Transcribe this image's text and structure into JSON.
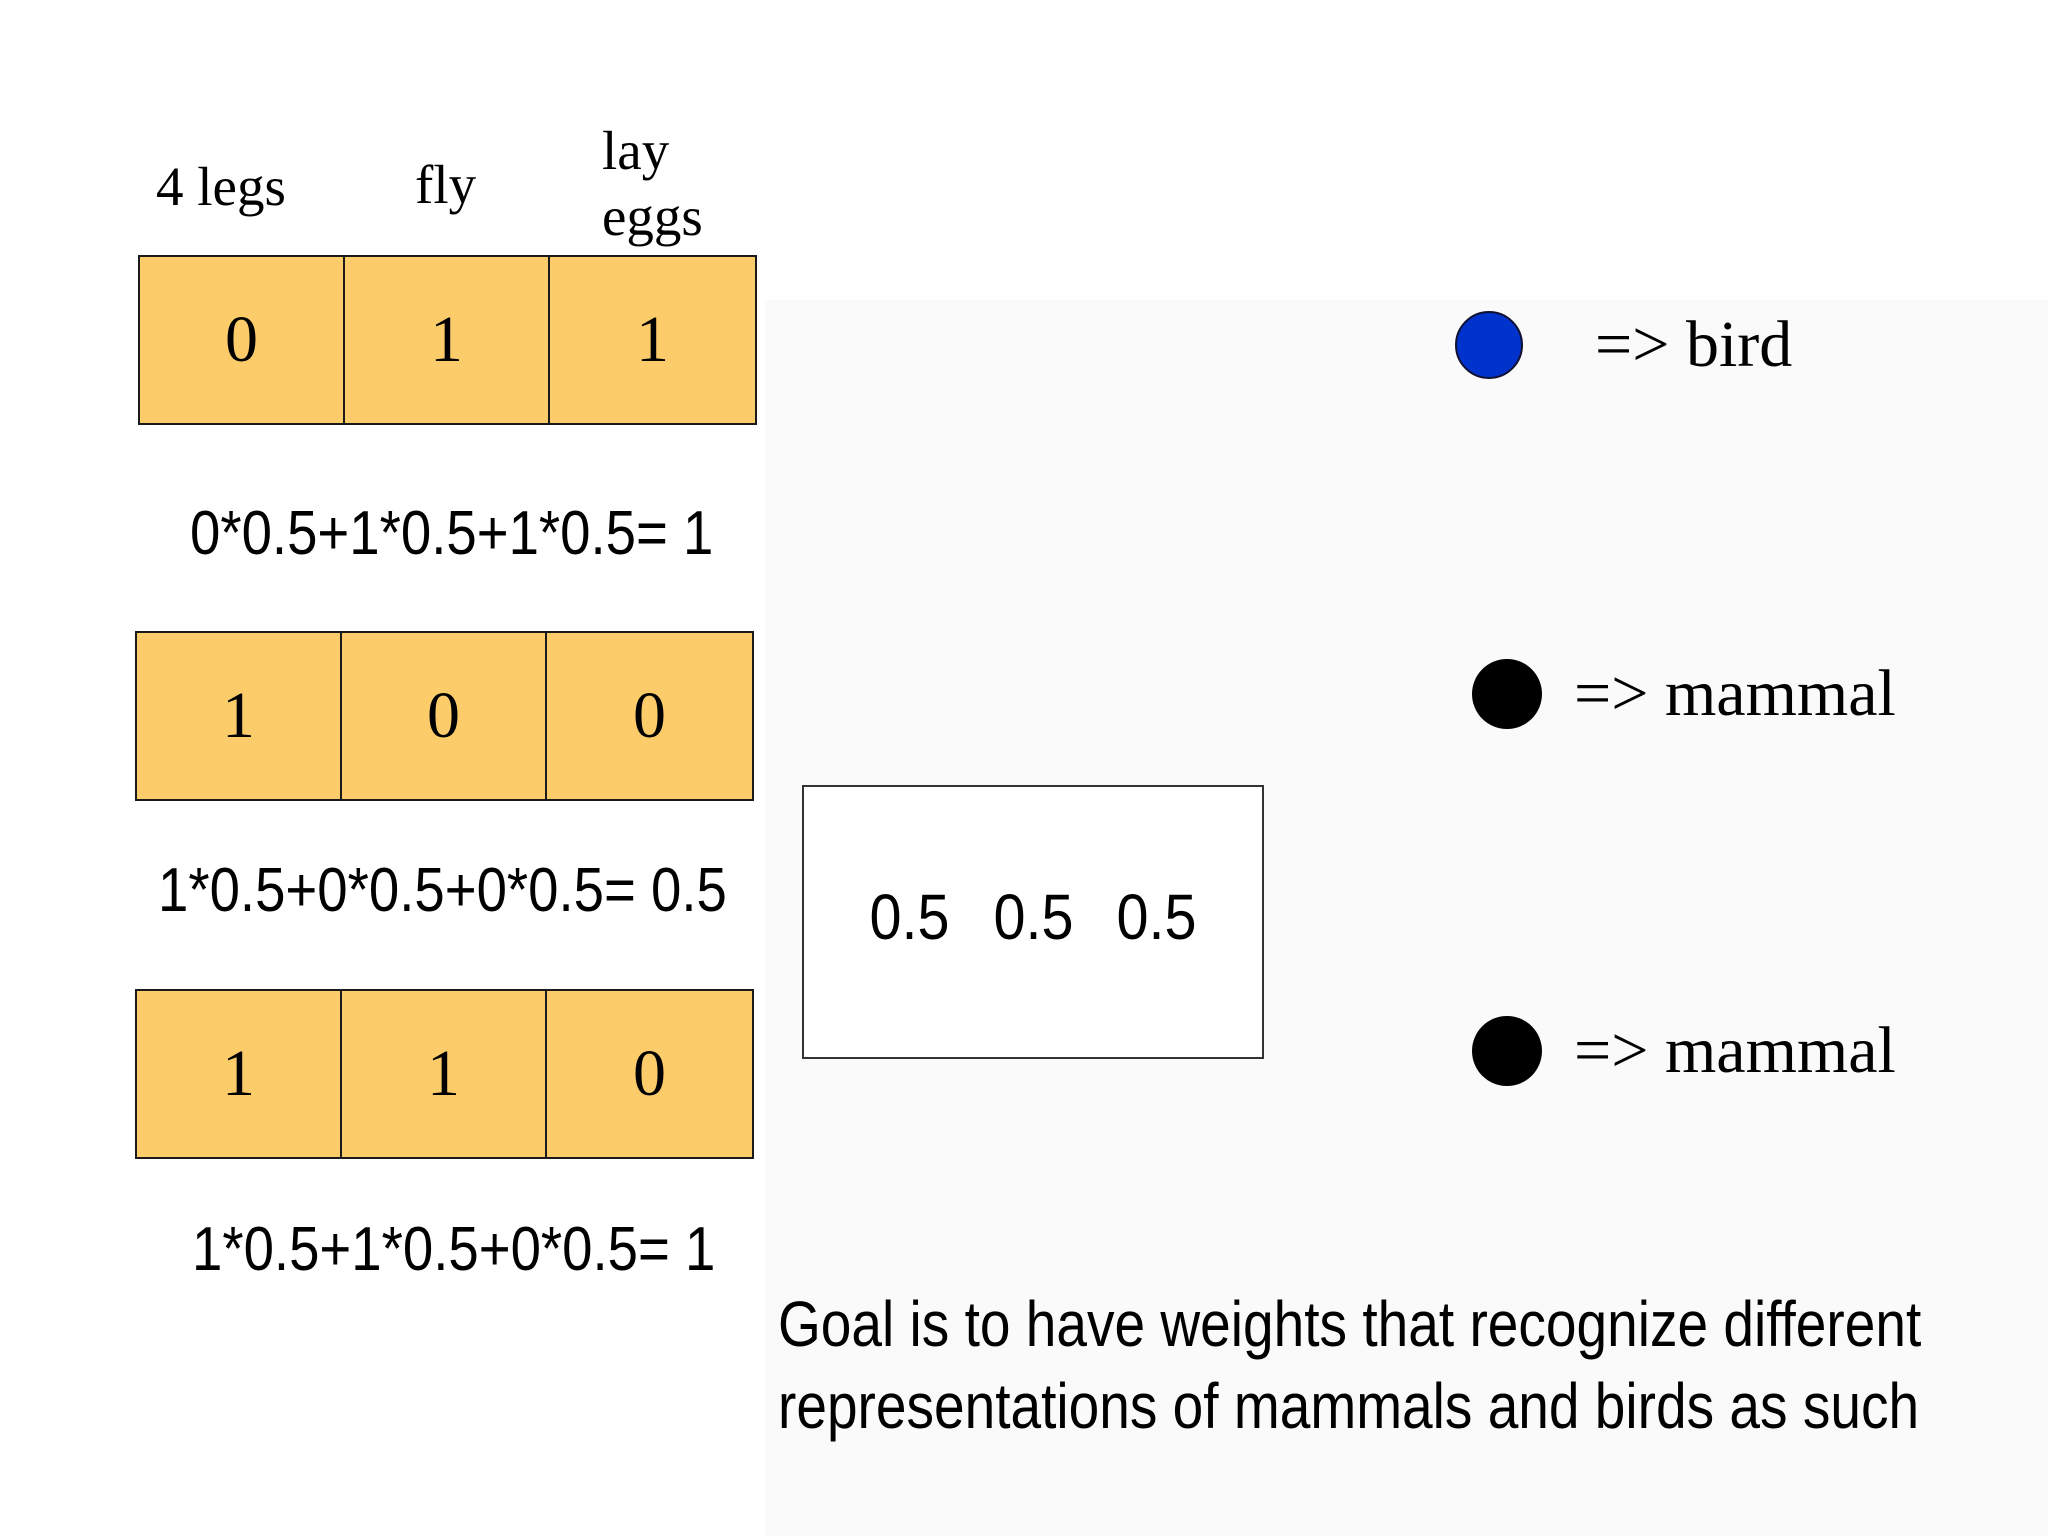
{
  "headers": {
    "four_legs": "4 legs",
    "fly": "fly",
    "lay_line1": "lay",
    "lay_line2": "eggs"
  },
  "examples": [
    {
      "values": [
        "0",
        "1",
        "1"
      ],
      "equation": "0*0.5+1*0.5+1*0.5= 1"
    },
    {
      "values": [
        "1",
        "0",
        "0"
      ],
      "equation": "1*0.5+0*0.5+0*0.5= 0.5"
    },
    {
      "values": [
        "1",
        "1",
        "0"
      ],
      "equation": "1*0.5+1*0.5+0*0.5= 1"
    }
  ],
  "weights": [
    "0.5",
    "0.5",
    "0.5"
  ],
  "results": [
    {
      "label": "=> bird",
      "dot_color": "#0033cc"
    },
    {
      "label": "=> mammal",
      "dot_color": "#000000"
    },
    {
      "label": "=> mammal",
      "dot_color": "#000000"
    }
  ],
  "goal": {
    "line1": "Goal is to have  weights that recognize different",
    "line2": "representations of mammals and birds as such"
  },
  "colors": {
    "cell_fill": "#fccc6b",
    "bird_dot": "#0033cc",
    "mammal_dot": "#000000"
  }
}
